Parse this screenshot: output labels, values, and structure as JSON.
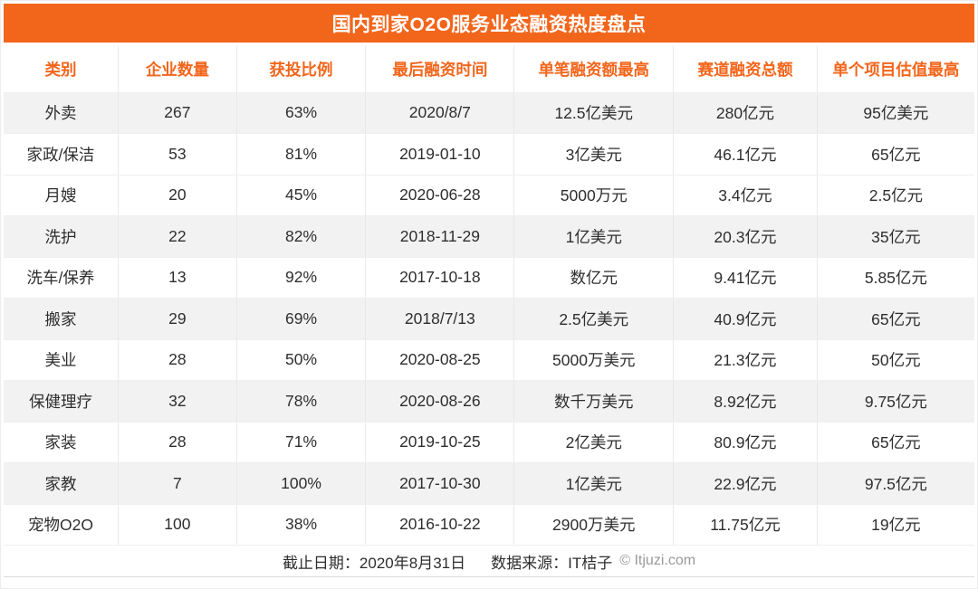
{
  "chart_data": {
    "type": "table",
    "title": "国内到家O2O服务业态融资热度盘点",
    "columns": [
      "类别",
      "企业数量",
      "获投比例",
      "最后融资时间",
      "单笔融资额最高",
      "赛道融资总额",
      "单个项目估值最高"
    ],
    "rows": [
      {
        "cells": [
          "外卖",
          "267",
          "63%",
          "2020/8/7",
          "12.5亿美元",
          "280亿元",
          "95亿美元"
        ],
        "shaded": true
      },
      {
        "cells": [
          "家政/保洁",
          "53",
          "81%",
          "2019-01-10",
          "3亿美元",
          "46.1亿元",
          "65亿元"
        ],
        "shaded": false
      },
      {
        "cells": [
          "月嫂",
          "20",
          "45%",
          "2020-06-28",
          "5000万元",
          "3.4亿元",
          "2.5亿元"
        ],
        "shaded": false
      },
      {
        "cells": [
          "洗护",
          "22",
          "82%",
          "2018-11-29",
          "1亿美元",
          "20.3亿元",
          "35亿元"
        ],
        "shaded": true
      },
      {
        "cells": [
          "洗车/保养",
          "13",
          "92%",
          "2017-10-18",
          "数亿元",
          "9.41亿元",
          "5.85亿元"
        ],
        "shaded": false
      },
      {
        "cells": [
          "搬家",
          "29",
          "69%",
          "2018/7/13",
          "2.5亿美元",
          "40.9亿元",
          "65亿元"
        ],
        "shaded": true
      },
      {
        "cells": [
          "美业",
          "28",
          "50%",
          "2020-08-25",
          "5000万美元",
          "21.3亿元",
          "50亿元"
        ],
        "shaded": false
      },
      {
        "cells": [
          "保健理疗",
          "32",
          "78%",
          "2020-08-26",
          "数千万美元",
          "8.92亿元",
          "9.75亿元"
        ],
        "shaded": true
      },
      {
        "cells": [
          "家装",
          "28",
          "71%",
          "2019-10-25",
          "2亿美元",
          "80.9亿元",
          "65亿元"
        ],
        "shaded": false
      },
      {
        "cells": [
          "家教",
          "7",
          "100%",
          "2017-10-30",
          "1亿美元",
          "22.9亿元",
          "97.5亿元"
        ],
        "shaded": true
      },
      {
        "cells": [
          "宠物O2O",
          "100",
          "38%",
          "2016-10-22",
          "2900万美元",
          "11.75亿元",
          "19亿元"
        ],
        "shaded": false
      }
    ],
    "column_widths_pct": [
      11.8,
      12.2,
      13.3,
      15.3,
      16.4,
      14.8,
      16.2
    ]
  },
  "footer": {
    "date_text": "截止日期：2020年8月31日",
    "source_text": "数据来源：IT桔子",
    "copyright_text": "© Itjuzi.com"
  },
  "colors": {
    "accent": "#F2661C",
    "row_shade": "#F2F2F2",
    "body_text": "#2E2E2E",
    "muted_text": "#999999"
  }
}
